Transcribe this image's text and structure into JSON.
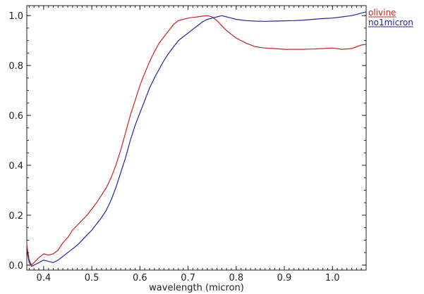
{
  "chart_data": {
    "type": "line",
    "title": "",
    "xlabel": "wavelength (micron)",
    "ylabel": "",
    "xlim": [
      0.365,
      1.07
    ],
    "ylim": [
      -0.02,
      1.04
    ],
    "xticks": [
      0.4,
      0.5,
      0.6,
      0.7,
      0.8,
      0.9,
      1.0
    ],
    "xtick_labels": [
      "0.4",
      "0.5",
      "0.6",
      "0.7",
      "0.8",
      "0.9",
      "1.0"
    ],
    "yticks": [
      0.0,
      0.2,
      0.4,
      0.6,
      0.8,
      1.0
    ],
    "ytick_labels": [
      "0.0",
      "0.2",
      "0.4",
      "0.6",
      "0.8",
      "1.0"
    ],
    "grid": false,
    "legend_position": "top-right-outside",
    "series": [
      {
        "name": "olivine",
        "color": "#cc2222",
        "x": [
          0.365,
          0.37,
          0.375,
          0.38,
          0.39,
          0.4,
          0.41,
          0.42,
          0.43,
          0.44,
          0.45,
          0.46,
          0.47,
          0.48,
          0.49,
          0.5,
          0.51,
          0.52,
          0.53,
          0.54,
          0.55,
          0.56,
          0.57,
          0.58,
          0.59,
          0.6,
          0.61,
          0.62,
          0.63,
          0.64,
          0.65,
          0.66,
          0.67,
          0.68,
          0.69,
          0.7,
          0.71,
          0.72,
          0.73,
          0.74,
          0.75,
          0.76,
          0.77,
          0.78,
          0.79,
          0.8,
          0.82,
          0.84,
          0.86,
          0.88,
          0.9,
          0.92,
          0.94,
          0.96,
          0.98,
          1.0,
          1.02,
          1.04,
          1.05,
          1.06,
          1.07
        ],
        "y": [
          0.08,
          0.02,
          0.0,
          0.01,
          0.03,
          0.045,
          0.04,
          0.045,
          0.06,
          0.09,
          0.11,
          0.14,
          0.16,
          0.18,
          0.2,
          0.225,
          0.25,
          0.28,
          0.31,
          0.35,
          0.4,
          0.46,
          0.53,
          0.6,
          0.66,
          0.72,
          0.77,
          0.815,
          0.855,
          0.89,
          0.915,
          0.94,
          0.965,
          0.98,
          0.985,
          0.99,
          0.993,
          0.995,
          0.998,
          1.0,
          0.995,
          0.98,
          0.96,
          0.94,
          0.925,
          0.91,
          0.89,
          0.875,
          0.87,
          0.868,
          0.865,
          0.865,
          0.865,
          0.866,
          0.868,
          0.87,
          0.865,
          0.868,
          0.875,
          0.882,
          0.885
        ]
      },
      {
        "name": "no1micron",
        "color": "#2222aa",
        "x": [
          0.365,
          0.37,
          0.375,
          0.38,
          0.39,
          0.4,
          0.41,
          0.42,
          0.43,
          0.44,
          0.45,
          0.46,
          0.47,
          0.48,
          0.49,
          0.5,
          0.51,
          0.52,
          0.53,
          0.54,
          0.55,
          0.56,
          0.57,
          0.58,
          0.59,
          0.6,
          0.61,
          0.62,
          0.63,
          0.64,
          0.65,
          0.66,
          0.67,
          0.68,
          0.69,
          0.7,
          0.71,
          0.72,
          0.73,
          0.74,
          0.75,
          0.76,
          0.77,
          0.78,
          0.79,
          0.8,
          0.82,
          0.84,
          0.86,
          0.88,
          0.9,
          0.92,
          0.94,
          0.96,
          0.98,
          1.0,
          1.02,
          1.04,
          1.05,
          1.06,
          1.07
        ],
        "y": [
          0.06,
          0.01,
          -0.005,
          0.0,
          0.01,
          0.02,
          0.015,
          0.01,
          0.02,
          0.035,
          0.05,
          0.065,
          0.08,
          0.1,
          0.12,
          0.14,
          0.165,
          0.19,
          0.22,
          0.26,
          0.31,
          0.37,
          0.43,
          0.5,
          0.56,
          0.61,
          0.66,
          0.71,
          0.75,
          0.785,
          0.82,
          0.85,
          0.875,
          0.9,
          0.915,
          0.93,
          0.945,
          0.96,
          0.975,
          0.985,
          0.99,
          0.995,
          1.0,
          0.995,
          0.99,
          0.985,
          0.98,
          0.978,
          0.977,
          0.978,
          0.979,
          0.98,
          0.982,
          0.985,
          0.988,
          0.99,
          0.995,
          1.0,
          1.005,
          1.01,
          1.015
        ]
      }
    ]
  }
}
